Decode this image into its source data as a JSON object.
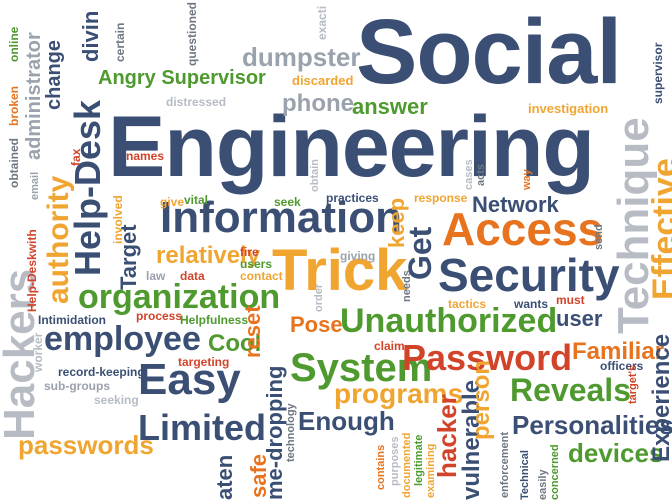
{
  "words": {
    "social": "Social",
    "engineering": "Engineering",
    "information": "Information",
    "trick": "Trick",
    "access": "Access",
    "security": "Security",
    "organization": "organization",
    "employee": "employee",
    "easy": "Easy",
    "limited": "Limited",
    "system": "System",
    "password": "Password",
    "unauthorized": "Unauthorized",
    "reveals": "Reveals",
    "personalities": "Personalities",
    "devices": "devices",
    "passwords": "passwords",
    "programs": "programs",
    "enough": "Enough",
    "network": "Network",
    "technique": "Technique",
    "effective": "Effective",
    "experience": "Experience",
    "hackers": "Hackers",
    "help_desk": "Help-Desk",
    "authority": "authority",
    "change": "change",
    "divin": "divin",
    "administrator": "administrator",
    "angry_supervisor": "Angry Supervisor",
    "dumpster": "dumpster",
    "phone": "phone",
    "answer": "answer",
    "discarded": "discarded",
    "distressed": "distressed",
    "investigation": "investigation",
    "supervisor": "supervisor",
    "target": "Target",
    "relatively": "relatively",
    "cool": "Cool",
    "pose": "Pose",
    "familiar": "Familiar",
    "user": "user",
    "get": "Get",
    "keep": "keep",
    "reset": "reset",
    "safe": "safe",
    "eavesdropping": "me-dropping",
    "hacker": "hacker",
    "vulnerable": "vulnerable",
    "person": "person",
    "intimidation": "Intimidation",
    "record_keeping": "record-keeping",
    "sub_groups": "sub-groups",
    "seeking": "seeking",
    "worker": "worker",
    "names": "names",
    "practices": "practices",
    "response": "response",
    "giving": "giving",
    "seek": "seek",
    "give": "give",
    "vital": "vital",
    "fire": "fire",
    "users": "users",
    "contact": "contact",
    "data": "data",
    "law": "law",
    "process": "process",
    "helpfulness": "Helpfulness",
    "targeting": "targeting",
    "claim": "claim",
    "tactics": "tactics",
    "wants": "wants",
    "must": "must",
    "officers": "officers",
    "online": "online",
    "broken": "broken",
    "obtained": "obtained",
    "email": "email",
    "fax": "fax",
    "help_deskwith": "Help-Deskwith",
    "involved": "involved",
    "certain": "certain",
    "questioned": "questioned",
    "exact": "exacti",
    "needs": "needs",
    "order": "order",
    "obtain": "obtain",
    "cases": "cases",
    "acts": "acts",
    "way": "way",
    "send": "send",
    "technology": "technology",
    "contains": "contains",
    "purposes": "purposes",
    "documented": "documented",
    "legitimate": "legitimate",
    "examining": "examining",
    "enforcement": "enforcement",
    "technical": "Technical",
    "easily": "easily",
    "concerned": "concerned",
    "targets": "target's",
    "aten": "aten"
  },
  "colors": {
    "navy": "#3b4f74",
    "green": "#4e9a2f",
    "orange": "#e8731e",
    "red": "#d2442a",
    "gold": "#f0a531",
    "gray": "#9aa2ad"
  }
}
